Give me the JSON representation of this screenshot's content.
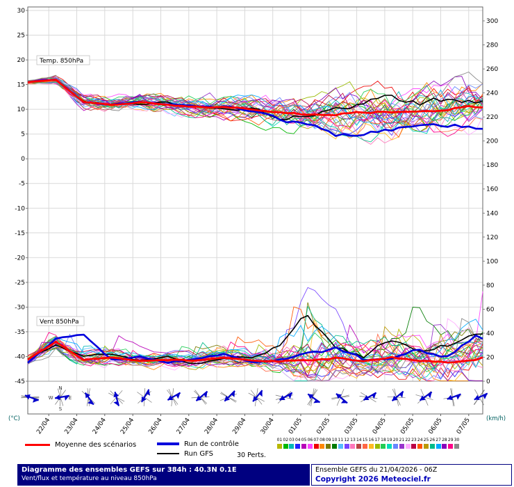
{
  "colors": {
    "mean": "#ff0000",
    "control": "#0000dd",
    "gfs": "#000000",
    "grid": "#d9d9d9",
    "frame": "#666666",
    "barb": "#0000cc",
    "barb_cross": "#555555",
    "axis_unit": "#006060",
    "footer_bg": "#000080",
    "copyright": "#0000bb",
    "members": [
      "#b8b800",
      "#00b800",
      "#00b8b8",
      "#2222ff",
      "#b800b8",
      "#ff44ff",
      "#ee0000",
      "#ff8800",
      "#7a7a00",
      "#007a00",
      "#55bbff",
      "#7744ff",
      "#ff77bb",
      "#bb4444",
      "#ff6644",
      "#ffbb22",
      "#99bb00",
      "#22cc55",
      "#00ddbb",
      "#6688ff",
      "#9933cc",
      "#ffaaff",
      "#bb0044",
      "#ff5500",
      "#bb9900",
      "#00bb88",
      "#00aaff",
      "#8800bb",
      "#ff0088",
      "#888888"
    ]
  },
  "legend": {
    "mean": "Moyenne des scénarios",
    "control": "Run de contrôle",
    "gfs": "Run GFS",
    "perts": "30 Perts.",
    "member_ids": [
      "01",
      "02",
      "03",
      "04",
      "05",
      "06",
      "07",
      "08",
      "09",
      "10",
      "11",
      "12",
      "13",
      "14",
      "15",
      "16",
      "17",
      "18",
      "19",
      "20",
      "21",
      "22",
      "23",
      "24",
      "25",
      "26",
      "27",
      "28",
      "29",
      "30"
    ]
  },
  "footer": {
    "left_line1": "Diagramme des ensembles GEFS sur 384h : 40.3N 0.1E",
    "left_line2": "Vent/flux et température au niveau 850hPa",
    "right_line1": "Ensemble GEFS du 21/04/2026 - 06Z",
    "right_line2": "Copyright 2026 Meteociel.fr"
  },
  "chart_data": {
    "type": "line",
    "title": "Diagramme des ensembles GEFS sur 384h : 40.3N 0.1E",
    "subtitle": "Vent/flux et température au niveau 850hPa",
    "run_hours": 384,
    "left_axis": {
      "unit": "(°C)",
      "min": -45,
      "max": 30,
      "step": 5
    },
    "right_axis": {
      "unit": "(km/h)",
      "min": 0,
      "max": 300,
      "step": 20
    },
    "x_dates": [
      "22/04",
      "23/04",
      "24/04",
      "25/04",
      "26/04",
      "27/04",
      "28/04",
      "29/04",
      "30/04",
      "01/05",
      "02/05",
      "03/05",
      "04/05",
      "05/05",
      "06/05",
      "07/05"
    ],
    "anchors_h": [
      0,
      24,
      48,
      72,
      96,
      120,
      144,
      168,
      192,
      216,
      240,
      264,
      288,
      312,
      336,
      360,
      384
    ],
    "temp": {
      "label": "Temp. 850hPa",
      "mean": [
        15.5,
        16,
        11.5,
        11,
        11.5,
        11,
        10.5,
        10.5,
        10,
        9.5,
        9,
        9,
        9.5,
        9.5,
        10,
        10,
        10.5
      ],
      "control": [
        15.5,
        16,
        11.5,
        11,
        11.5,
        11,
        10.5,
        10.5,
        10,
        8,
        7,
        5,
        5.5,
        6,
        6,
        6.5,
        6.5
      ],
      "gfs": [
        15.5,
        16,
        11.5,
        11,
        11,
        11.5,
        10.5,
        10,
        10,
        8,
        9,
        10,
        11,
        13,
        11,
        12,
        12
      ],
      "spread": [
        0.5,
        0.8,
        1.5,
        1.5,
        2,
        2,
        2.5,
        2.5,
        3,
        3.5,
        4,
        4.5,
        5,
        5,
        5,
        5,
        5
      ]
    },
    "wind": {
      "label": "Vent 850hPa",
      "mean": [
        18,
        33,
        18,
        20,
        17,
        18,
        17,
        20,
        18,
        17,
        18,
        20,
        17,
        20,
        18,
        17,
        20
      ],
      "control": [
        15,
        35,
        38,
        18,
        20,
        15,
        18,
        22,
        15,
        18,
        20,
        25,
        18,
        22,
        28,
        20,
        35
      ],
      "gfs": [
        18,
        30,
        20,
        22,
        18,
        20,
        15,
        18,
        20,
        30,
        55,
        25,
        20,
        35,
        25,
        30,
        40
      ],
      "spread": [
        5,
        8,
        8,
        8,
        7,
        7,
        7,
        8,
        8,
        12,
        25,
        20,
        15,
        18,
        18,
        20,
        25
      ]
    },
    "barbs": {
      "compass_hour": 28,
      "compass_letters": [
        "N",
        "E",
        "S",
        "W"
      ],
      "hours": [
        2,
        28,
        52,
        76,
        100,
        124,
        148,
        172,
        196,
        220,
        244,
        268,
        292,
        316,
        340,
        364,
        387
      ],
      "angles": [
        200,
        170,
        235,
        255,
        120,
        150,
        140,
        135,
        130,
        150,
        215,
        220,
        150,
        140,
        145,
        160,
        155
      ]
    }
  }
}
